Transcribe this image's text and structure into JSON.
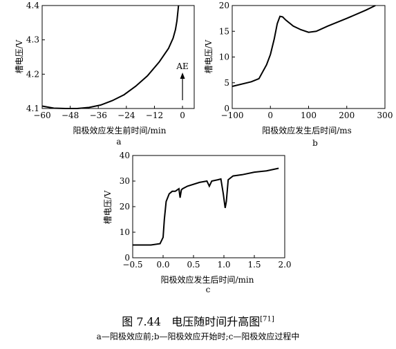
{
  "figure": {
    "caption_prefix": "图 7.44",
    "caption_title": "电压随时间升高图",
    "caption_ref": "[71]",
    "caption_sub": "a—阳极效应前;b—阳极效应开始时;c—阳极效应过程中"
  },
  "chart_data": [
    {
      "id": "a",
      "panel_label": "a",
      "type": "line",
      "xlabel": "阳极效应发生前时间/min",
      "ylabel": "槽电压/V",
      "xlim": [
        -60,
        5
      ],
      "ylim": [
        4.1,
        4.4
      ],
      "xticks": [
        -60,
        -48,
        -36,
        -24,
        -12,
        0
      ],
      "yticks": [
        4.1,
        4.2,
        4.3,
        4.4
      ],
      "annotation": "AE",
      "annotation_x": 0,
      "series": [
        {
          "x": [
            -60,
            -55,
            -50,
            -45,
            -40,
            -35,
            -30,
            -25,
            -20,
            -15,
            -10,
            -6,
            -4,
            -3,
            -2.4,
            -2,
            -1.7
          ],
          "y": [
            4.107,
            4.101,
            4.1,
            4.1,
            4.103,
            4.11,
            4.123,
            4.14,
            4.165,
            4.195,
            4.235,
            4.275,
            4.305,
            4.33,
            4.355,
            4.38,
            4.4
          ]
        }
      ]
    },
    {
      "id": "b",
      "panel_label": "b",
      "type": "line",
      "xlabel": "阳极效应发生后时间/ms",
      "ylabel": "槽电压/V",
      "xlim": [
        -100,
        300
      ],
      "ylim": [
        0,
        20
      ],
      "xticks": [
        -100,
        0,
        100,
        200,
        300
      ],
      "yticks": [
        0,
        5,
        10,
        15,
        20
      ],
      "series": [
        {
          "x": [
            -100,
            -50,
            -30,
            -10,
            0,
            10,
            18,
            25,
            32,
            40,
            60,
            80,
            100,
            120,
            150,
            200,
            250,
            275
          ],
          "y": [
            4.3,
            5.2,
            5.8,
            8.5,
            10.5,
            13.5,
            16.5,
            17.9,
            17.8,
            17.2,
            16.0,
            15.3,
            14.8,
            15.0,
            16.0,
            17.5,
            19.1,
            20
          ]
        }
      ]
    },
    {
      "id": "c",
      "panel_label": "c",
      "type": "line",
      "xlabel": "阳极效应发生后时间/min",
      "ylabel": "槽电压/V",
      "xlim": [
        -0.5,
        2.0
      ],
      "ylim": [
        0,
        40
      ],
      "xticks": [
        -0.5,
        0.0,
        0.5,
        1.0,
        1.5,
        2.0
      ],
      "yticks": [
        0,
        10,
        20,
        30,
        40
      ],
      "series": [
        {
          "x": [
            -0.5,
            -0.2,
            -0.05,
            0.0,
            0.02,
            0.05,
            0.1,
            0.15,
            0.2,
            0.26,
            0.28,
            0.3,
            0.32,
            0.4,
            0.6,
            0.72,
            0.76,
            0.8,
            0.9,
            0.95,
            0.99,
            1.02,
            1.04,
            1.07,
            1.15,
            1.3,
            1.5,
            1.7,
            1.9
          ],
          "y": [
            5,
            5,
            5.5,
            8,
            15,
            22,
            25,
            26,
            26,
            27,
            23.5,
            26.5,
            27,
            28,
            29.5,
            30,
            28,
            30,
            30.5,
            30.8,
            25,
            19.5,
            22,
            30.5,
            32,
            32.5,
            33.5,
            34,
            35
          ]
        }
      ]
    }
  ]
}
